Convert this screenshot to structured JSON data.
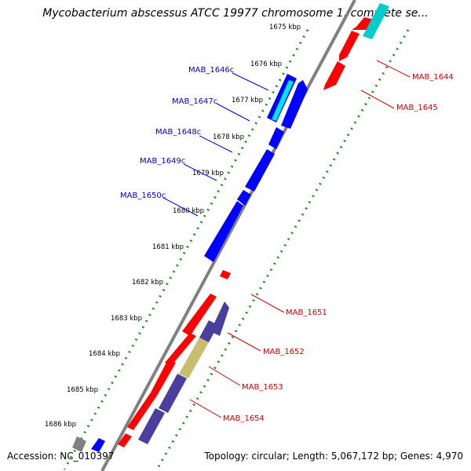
{
  "title": "Mycobacterium abscessus ATCC 19977 chromosome 1, complete se...",
  "footer": {
    "accession": "Accession: NC_010397",
    "topology": "Topology: circular; Length: 5,067,172 bp; Genes: 4,970"
  },
  "colors": {
    "backbone": "#808080",
    "forward_gene": "#ff0000",
    "reverse_gene": "#0000ff",
    "reverse_gene_alt": "#4b3f9e",
    "cyan_gene": "#00cccc",
    "khaki_gene": "#c8bc6e",
    "tick": "#228B22",
    "label_blue": "#0000cc",
    "label_red": "#cc0000"
  },
  "kbp_ticks": [
    "1675 kbp",
    "1676 kbp",
    "1677 kbp",
    "1678 kbp",
    "1679 kbp",
    "1680 kbp",
    "1681 kbp",
    "1682 kbp",
    "1683 kbp",
    "1684 kbp",
    "1685 kbp",
    "1686 kbp"
  ],
  "genes_reverse": [
    "MAB_1646c",
    "MAB_1647c",
    "MAB_1648c",
    "MAB_1649c",
    "MAB_1650c"
  ],
  "genes_forward": [
    "MAB_1644",
    "MAB_1645",
    "MAB_1651",
    "MAB_1652",
    "MAB_1653",
    "MAB_1654"
  ]
}
